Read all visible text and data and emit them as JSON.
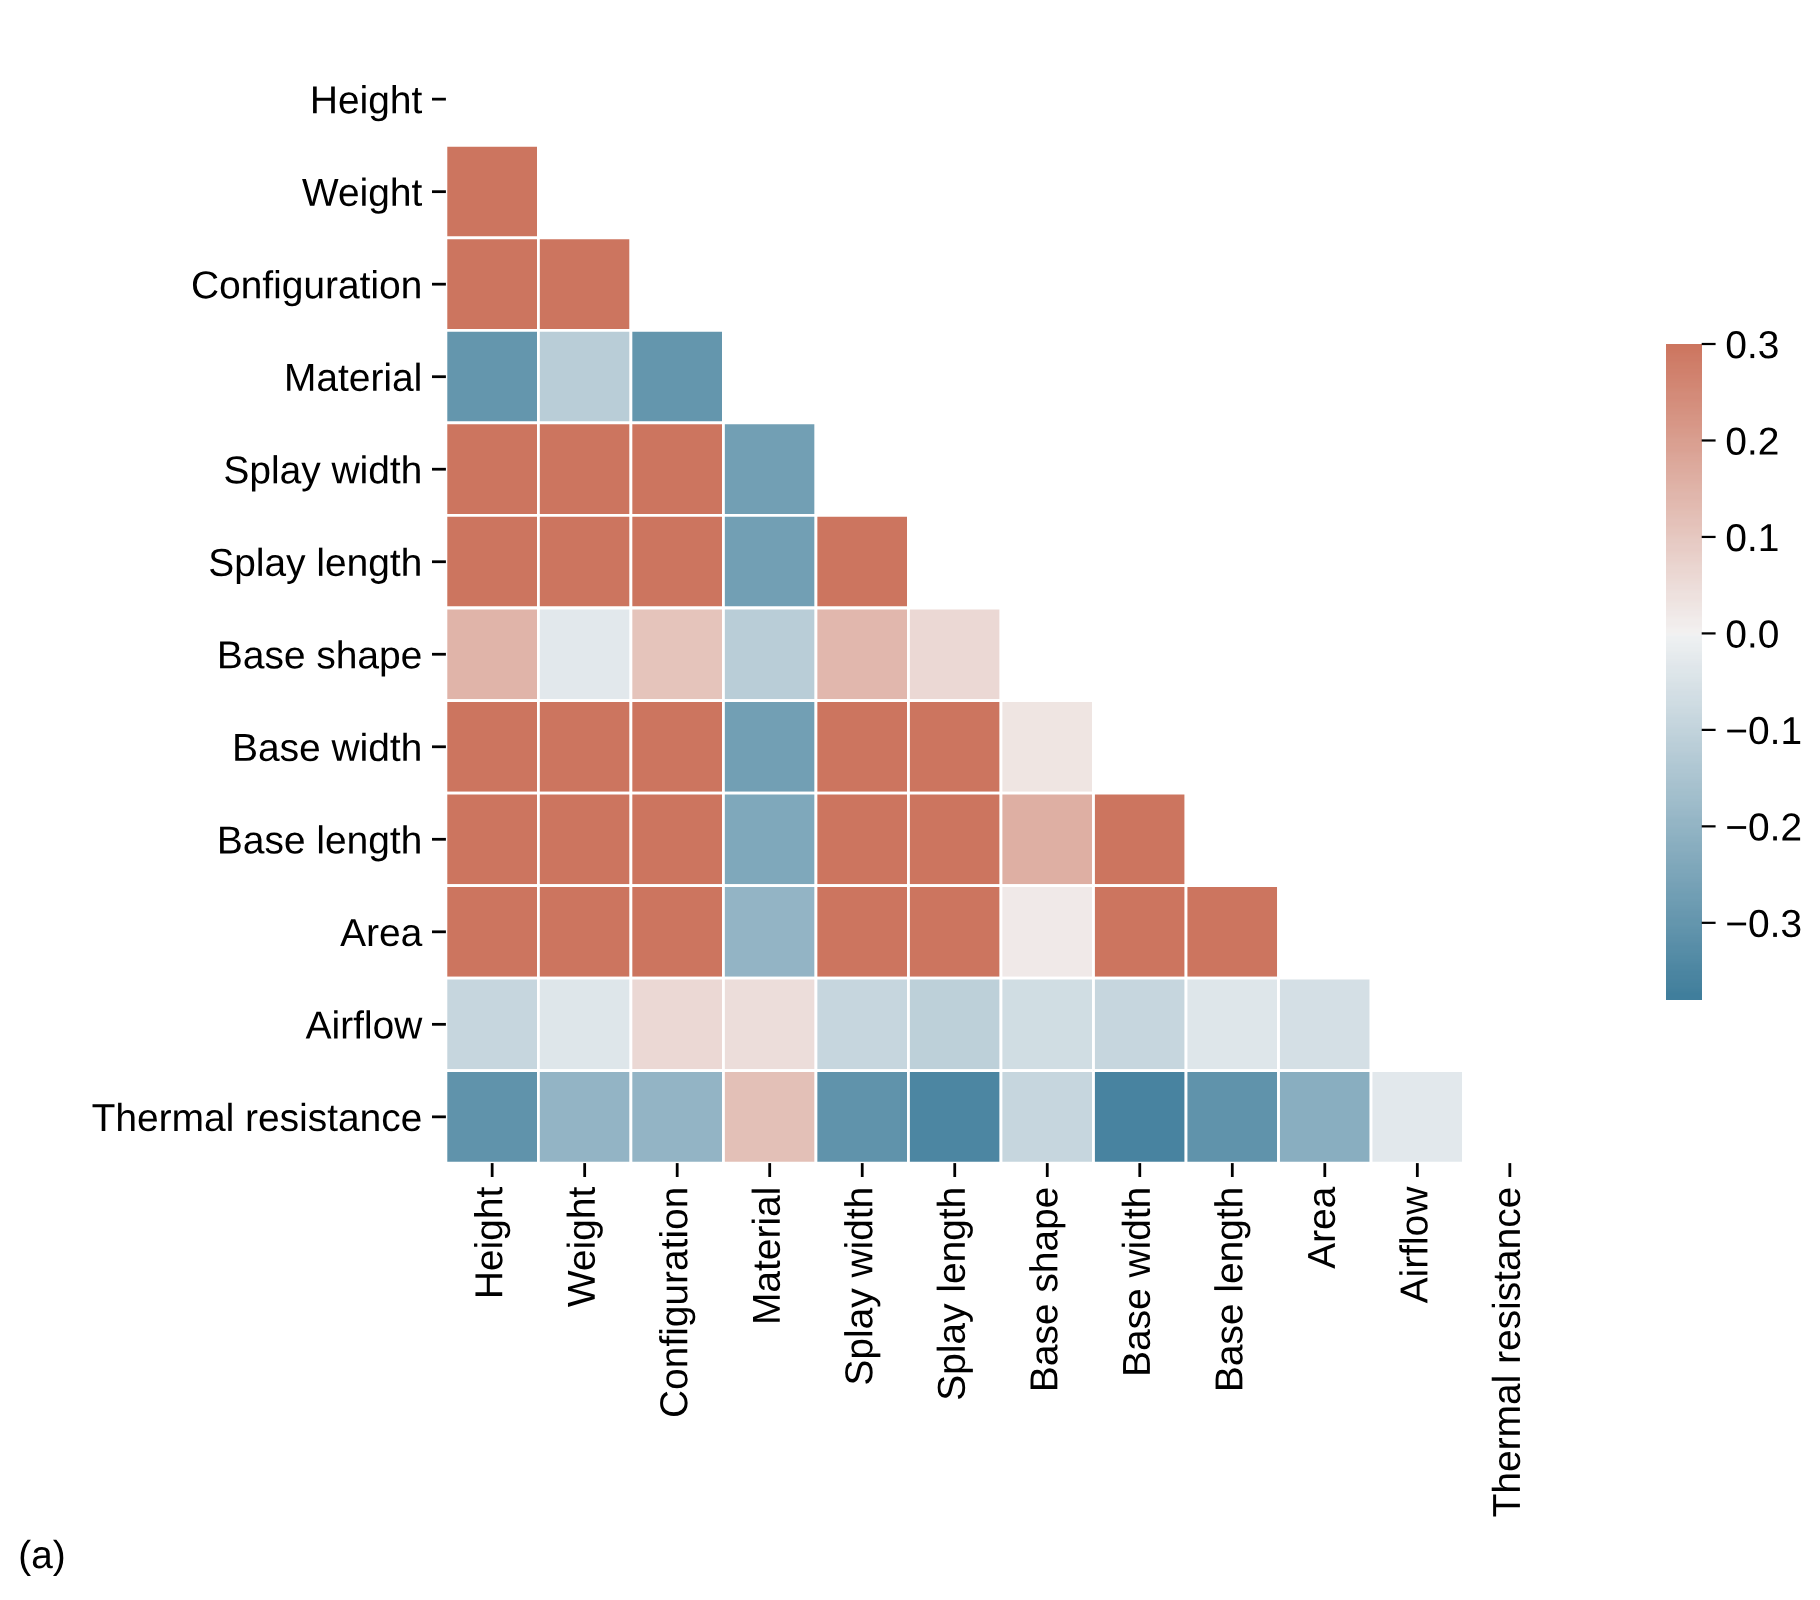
{
  "chart_data": {
    "type": "heatmap",
    "categories": [
      "Height",
      "Weight",
      "Configuration",
      "Material",
      "Splay width",
      "Splay length",
      "Base shape",
      "Base width",
      "Base length",
      "Area",
      "Airflow",
      "Thermal resistance"
    ],
    "y_categories": [
      "Height",
      "Weight",
      "Configuration",
      "Material",
      "Splay width",
      "Splay length",
      "Base shape",
      "Base width",
      "Base length",
      "Area",
      "Airflow",
      "Thermal resistance"
    ],
    "cells": [
      [
        null,
        null,
        null,
        null,
        null,
        null,
        null,
        null,
        null,
        null,
        null,
        null
      ],
      [
        0.3,
        null,
        null,
        null,
        null,
        null,
        null,
        null,
        null,
        null,
        null,
        null
      ],
      [
        0.3,
        0.3,
        null,
        null,
        null,
        null,
        null,
        null,
        null,
        null,
        null,
        null
      ],
      [
        -0.3,
        -0.12,
        -0.3,
        null,
        null,
        null,
        null,
        null,
        null,
        null,
        null,
        null
      ],
      [
        0.3,
        0.3,
        0.3,
        -0.27,
        null,
        null,
        null,
        null,
        null,
        null,
        null,
        null
      ],
      [
        0.3,
        0.3,
        0.3,
        -0.27,
        0.3,
        null,
        null,
        null,
        null,
        null,
        null,
        null
      ],
      [
        0.15,
        -0.03,
        0.11,
        -0.12,
        0.14,
        0.06,
        null,
        null,
        null,
        null,
        null,
        null
      ],
      [
        0.3,
        0.3,
        0.3,
        -0.27,
        0.3,
        0.3,
        0.03,
        null,
        null,
        null,
        null,
        null
      ],
      [
        0.3,
        0.3,
        0.3,
        -0.24,
        0.3,
        0.3,
        0.16,
        0.3,
        null,
        null,
        null,
        null
      ],
      [
        0.3,
        0.3,
        0.3,
        -0.2,
        0.3,
        0.3,
        0.02,
        0.3,
        0.3,
        null,
        null,
        null
      ],
      [
        -0.09,
        -0.04,
        0.06,
        0.05,
        -0.09,
        -0.11,
        -0.07,
        -0.09,
        -0.04,
        -0.06,
        null,
        null
      ],
      [
        -0.31,
        -0.2,
        -0.2,
        0.12,
        -0.31,
        -0.35,
        -0.09,
        -0.36,
        -0.31,
        -0.22,
        -0.03,
        null
      ]
    ],
    "clim": [
      -0.38,
      0.3
    ],
    "cticks": [
      0.3,
      0.2,
      0.1,
      {
        "value": 0,
        "label": "0.0"
      },
      {
        "value": -0.1,
        "label": "−0.1"
      },
      {
        "value": -0.2,
        "label": "−0.2"
      },
      {
        "value": -0.3,
        "label": "−0.3"
      }
    ],
    "annotations": [
      "(a)"
    ]
  }
}
